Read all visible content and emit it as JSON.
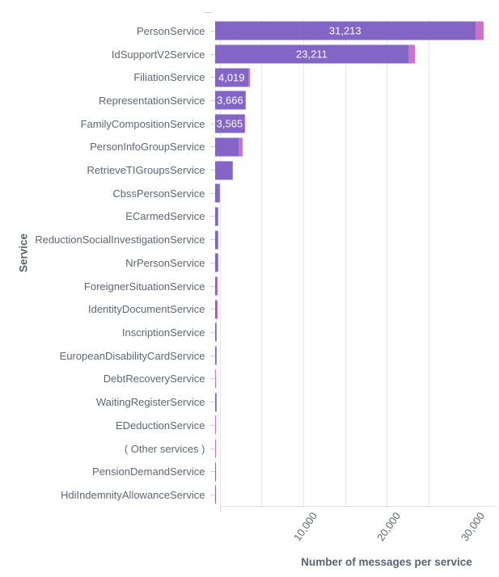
{
  "chart_data": {
    "type": "bar",
    "orientation": "horizontal",
    "stacked": true,
    "title": "",
    "xlabel": "Number of messages per service",
    "ylabel": "Service",
    "xlim": [
      0,
      33000
    ],
    "grid": true,
    "legend": "none",
    "minor_gridline_step": 5000,
    "xticks": [
      {
        "value": 10000,
        "label": "10,000"
      },
      {
        "value": 20000,
        "label": "20,000"
      },
      {
        "value": 30000,
        "label": "30,000"
      }
    ],
    "categories": [
      "PersonService",
      "IdSupportV2Service",
      "FiliationService",
      "RepresentationService",
      "FamilyCompositionService",
      "PersonInfoGroupService",
      "RetrieveTIGroupsService",
      "CbssPersonService",
      "ECarmedService",
      "ReductionSocialInvestigationService",
      "NrPersonService",
      "ForeignerSituationService",
      "IdentityDocumentService",
      "InscriptionService",
      "EuropeanDisabilityCardService",
      "DebtRecoveryService",
      "WaitingRegisterService",
      "EDeductionService",
      "( Other services )",
      "PensionDemandService",
      "HdiIndemnityAllowanceService"
    ],
    "series": [
      {
        "name": "messages-primary",
        "color": "#8365C6",
        "values": [
          31213,
          23211,
          4019,
          3666,
          3565,
          2870,
          2060,
          520,
          310,
          330,
          300,
          210,
          230,
          150,
          150,
          90,
          100,
          70,
          45,
          25,
          20
        ]
      },
      {
        "name": "messages-secondary",
        "color": "#CB73C7",
        "values": [
          950,
          720,
          150,
          100,
          100,
          500,
          80,
          40,
          30,
          30,
          30,
          20,
          20,
          15,
          15,
          15,
          10,
          10,
          8,
          5,
          5
        ]
      }
    ],
    "bar_labels": [
      "31,213",
      "23,211",
      "4,019",
      "3,666",
      "3,565",
      "",
      "",
      "",
      "",
      "",
      "",
      "",
      "",
      "",
      "",
      "",
      "",
      "",
      "",
      "",
      ""
    ],
    "inside_label_color": "#ffffff"
  },
  "colors": {
    "background": "#ffffff",
    "axis_text": "#5f6673",
    "axis_title": "#5a6370",
    "gridline": "#e6e7ec",
    "tick": "#ccd0d8",
    "bar_primary": "#8365C6",
    "bar_secondary": "#CB73C7"
  }
}
